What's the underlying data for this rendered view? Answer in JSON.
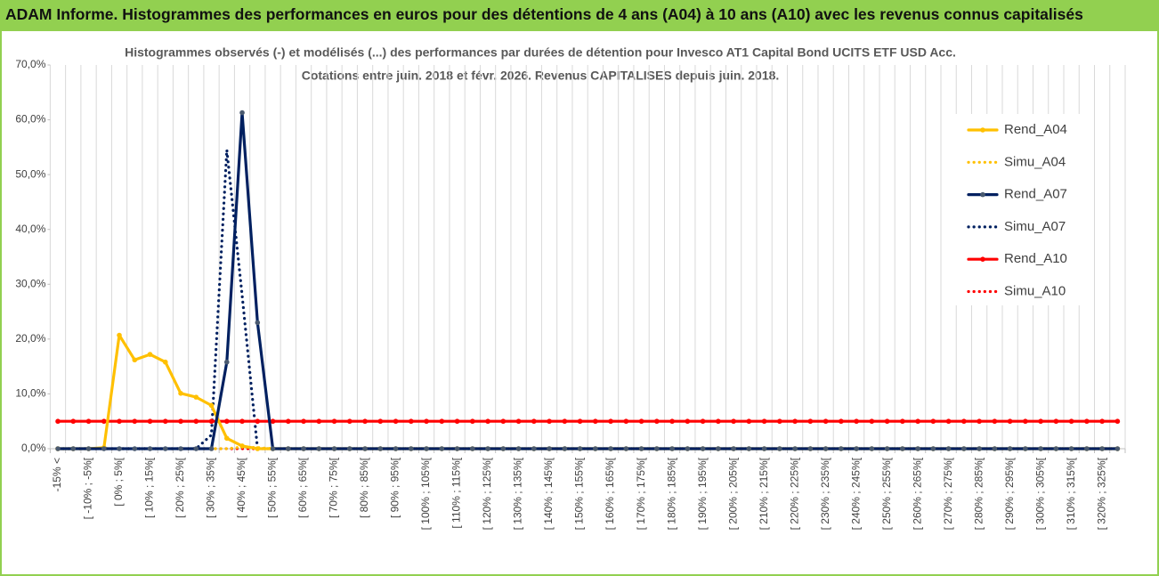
{
  "header": {
    "title": "ADAM Informe. Histogrammes des performances en euros pour des détentions de 4 ans (A04) à 10 ans (A10) avec les revenus connus capitalisés"
  },
  "chart_data": {
    "type": "line",
    "title": "Histogrammes observés (-) et modélisés (...) des performances par durées de détention pour Invesco AT1 Capital Bond UCITS ETF USD Acc.",
    "subtitle": "Cotations entre juin. 2018 et févr. 2026. Revenus CAPITALISES depuis juin. 2018.",
    "categories": [
      "-15% <",
      null,
      "[ -10% ; -5%[",
      null,
      "[ 0% ; 5%[",
      null,
      "[ 10% ; 15%[",
      null,
      "[ 20% ; 25%[",
      null,
      "[ 30% ; 35%[",
      null,
      "[ 40% ; 45%[",
      null,
      "[ 50% ; 55%[",
      null,
      "[ 60% ; 65%[",
      null,
      "[ 70% ; 75%[",
      null,
      "[ 80% ; 85%[",
      null,
      "[ 90% ; 95%[",
      null,
      "[ 100% ; 105%[",
      null,
      "[ 110% ; 115%[",
      null,
      "[ 120% ; 125%[",
      null,
      "[ 130% ; 135%[",
      null,
      "[ 140% ; 145%[",
      null,
      "[ 150% ; 155%[",
      null,
      "[ 160% ; 165%[",
      null,
      "[ 170% ; 175%[",
      null,
      "[ 180% ; 185%[",
      null,
      "[ 190% ; 195%[",
      null,
      "[ 200% ; 205%[",
      null,
      "[ 210% ; 215%[",
      null,
      "[ 220% ; 225%[",
      null,
      "[ 230% ; 235%[",
      null,
      "[ 240% ; 245%[",
      null,
      "[ 250% ; 255%[",
      null,
      "[ 260% ; 265%[",
      null,
      "[ 270% ; 275%[",
      null,
      "[ 280% ; 285%[",
      null,
      "[ 290% ; 295%[",
      null,
      "[ 300% ; 305%[",
      null,
      "[ 310% ; 315%[",
      null,
      "[ 320% ; 325%[",
      null
    ],
    "series": [
      {
        "name": "Rend_A04",
        "color": "#FFC000",
        "line_style": "solid",
        "markers": true,
        "values": [
          0,
          0,
          0,
          0.2,
          20.7,
          16.2,
          17.2,
          15.8,
          10.1,
          9.4,
          7.9,
          1.9,
          0.5,
          0,
          0,
          0,
          0,
          0,
          0,
          0,
          0,
          0,
          0,
          0,
          0,
          0,
          0,
          0,
          0,
          0,
          0,
          0,
          0,
          0,
          0,
          0,
          0,
          0,
          0,
          0,
          0,
          0,
          0,
          0,
          0,
          0,
          0,
          0,
          0,
          0,
          0,
          0,
          0,
          0,
          0,
          0,
          0,
          0,
          0,
          0,
          0,
          0,
          0,
          0,
          0,
          0,
          0,
          0,
          0,
          0
        ]
      },
      {
        "name": "Simu_A04",
        "color": "#FFC000",
        "line_style": "dotted",
        "markers": false,
        "values": [
          0,
          0,
          0,
          0,
          0,
          0,
          0,
          0,
          0,
          0,
          0,
          0,
          0.3,
          0.2,
          0,
          0,
          0,
          0,
          0,
          0,
          0,
          0,
          0,
          0,
          0,
          0,
          0,
          0,
          0,
          0,
          0,
          0,
          0,
          0,
          0,
          0,
          0,
          0,
          0,
          0,
          0,
          0,
          0,
          0,
          0,
          0,
          0,
          0,
          0,
          0,
          0,
          0,
          0,
          0,
          0,
          0,
          0,
          0,
          0,
          0,
          0,
          0,
          0,
          0,
          0,
          0,
          0,
          0,
          0,
          0
        ]
      },
      {
        "name": "Rend_A07",
        "color": "#002060",
        "line_style": "solid",
        "markers": true,
        "values": [
          0,
          0,
          0,
          0,
          0,
          0,
          0,
          0,
          0,
          0,
          0,
          15.8,
          61.3,
          23.0,
          0,
          0,
          0,
          0,
          0,
          0,
          0,
          0,
          0,
          0,
          0,
          0,
          0,
          0,
          0,
          0,
          0,
          0,
          0,
          0,
          0,
          0,
          0,
          0,
          0,
          0,
          0,
          0,
          0,
          0,
          0,
          0,
          0,
          0,
          0,
          0,
          0,
          0,
          0,
          0,
          0,
          0,
          0,
          0,
          0,
          0,
          0,
          0,
          0,
          0,
          0,
          0,
          0,
          0,
          0,
          0
        ]
      },
      {
        "name": "Simu_A07",
        "color": "#002060",
        "line_style": "dotted",
        "markers": false,
        "values": [
          0,
          0,
          0,
          0,
          0,
          0,
          0,
          0,
          0,
          0,
          2.5,
          54.5,
          28,
          0,
          0,
          0,
          0,
          0,
          0,
          0,
          0,
          0,
          0,
          0,
          0,
          0,
          0,
          0,
          0,
          0,
          0,
          0,
          0,
          0,
          0,
          0,
          0,
          0,
          0,
          0,
          0,
          0,
          0,
          0,
          0,
          0,
          0,
          0,
          0,
          0,
          0,
          0,
          0,
          0,
          0,
          0,
          0,
          0,
          0,
          0,
          0,
          0,
          0,
          0,
          0,
          0,
          0,
          0,
          0,
          0
        ]
      },
      {
        "name": "Rend_A10",
        "color": "#FF0000",
        "line_style": "solid",
        "markers": true,
        "values": [
          5,
          5,
          5,
          5,
          5,
          5,
          5,
          5,
          5,
          5,
          5,
          5,
          5,
          5,
          5,
          5,
          5,
          5,
          5,
          5,
          5,
          5,
          5,
          5,
          5,
          5,
          5,
          5,
          5,
          5,
          5,
          5,
          5,
          5,
          5,
          5,
          5,
          5,
          5,
          5,
          5,
          5,
          5,
          5,
          5,
          5,
          5,
          5,
          5,
          5,
          5,
          5,
          5,
          5,
          5,
          5,
          5,
          5,
          5,
          5,
          5,
          5,
          5,
          5,
          5,
          5,
          5,
          5,
          5,
          5
        ]
      },
      {
        "name": "Simu_A10",
        "color": "#FF0000",
        "line_style": "dotted",
        "markers": false,
        "values": [
          0,
          0,
          0,
          0,
          0,
          0,
          0,
          0,
          0,
          0,
          0,
          0,
          0,
          0,
          0,
          0,
          0,
          0,
          0,
          0,
          0,
          0,
          0,
          0,
          0,
          0,
          0,
          0,
          0,
          0,
          0,
          0,
          0,
          0,
          0,
          0,
          0,
          0,
          0,
          0,
          0,
          0,
          0,
          0,
          0,
          0,
          0,
          0,
          0,
          0,
          0,
          0,
          0,
          0,
          0,
          0,
          0,
          0,
          0,
          0,
          0,
          0,
          0,
          0,
          0,
          0,
          0,
          0,
          0,
          0
        ]
      }
    ],
    "ylim": [
      0,
      70
    ],
    "yticks": [
      {
        "value": 0,
        "label": "0,0%"
      },
      {
        "value": 10,
        "label": "10,0%"
      },
      {
        "value": 20,
        "label": "20,0%"
      },
      {
        "value": 30,
        "label": "30,0%"
      },
      {
        "value": 40,
        "label": "40,0%"
      },
      {
        "value": 50,
        "label": "50,0%"
      },
      {
        "value": 60,
        "label": "60,0%"
      },
      {
        "value": 70,
        "label": "70,0%"
      }
    ],
    "grid": true,
    "legend": "right"
  }
}
